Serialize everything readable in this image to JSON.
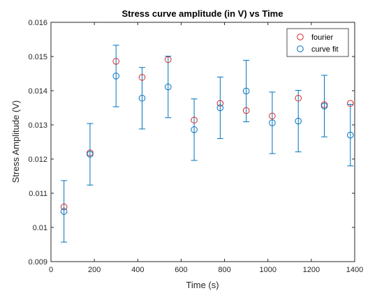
{
  "chart_data": {
    "type": "scatter",
    "title": "Stress curve amplitude (in V) vs Time",
    "xlabel": "Time (s)",
    "ylabel": "Stress Amplitude (V)",
    "xlim": [
      0,
      1400
    ],
    "ylim": [
      0.009,
      0.016
    ],
    "xticks": [
      0,
      200,
      400,
      600,
      800,
      1000,
      1200,
      1400
    ],
    "yticks": [
      0.009,
      0.01,
      0.011,
      0.012,
      0.013,
      0.014,
      0.015,
      0.016
    ],
    "xtick_labels": [
      "0",
      "200",
      "400",
      "600",
      "800",
      "1000",
      "1200",
      "1400"
    ],
    "ytick_labels": [
      "0.009",
      "0.01",
      "0.011",
      "0.012",
      "0.013",
      "0.014",
      "0.015",
      "0.016"
    ],
    "grid": false,
    "legend_position": "top-right",
    "series": [
      {
        "name": "fourier",
        "marker": "open-circle",
        "color": "#d62728",
        "x": [
          60,
          180,
          300,
          420,
          540,
          660,
          780,
          900,
          1020,
          1140,
          1260,
          1380
        ],
        "y": [
          0.0106,
          0.01218,
          0.01486,
          0.01439,
          0.01491,
          0.01314,
          0.01363,
          0.01342,
          0.01326,
          0.01378,
          0.01359,
          0.01363
        ]
      },
      {
        "name": "curve fit",
        "marker": "open-circle",
        "color": "#0072bd",
        "errorbars": true,
        "x": [
          60,
          180,
          300,
          420,
          540,
          660,
          780,
          900,
          1020,
          1140,
          1260,
          1380
        ],
        "y": [
          0.01047,
          0.01214,
          0.01443,
          0.01378,
          0.01411,
          0.01286,
          0.0135,
          0.01399,
          0.01306,
          0.01311,
          0.01355,
          0.0127
        ],
        "err": [
          0.0009,
          0.0009,
          0.0009,
          0.0009,
          0.0009,
          0.0009,
          0.0009,
          0.0009,
          0.0009,
          0.0009,
          0.0009,
          0.0009
        ]
      }
    ]
  }
}
